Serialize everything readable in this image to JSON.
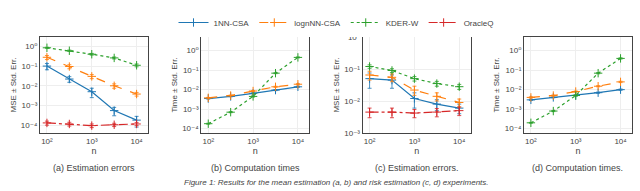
{
  "chart_data": [
    {
      "type": "line",
      "subtitle": "(a) Estimation errors",
      "xlabel": "n",
      "ylabel": "MSE ± Std. Err.",
      "x": [
        100,
        316,
        1000,
        3162,
        10000
      ],
      "series": [
        {
          "name": "1NN-CSA",
          "color": "#1f77b4",
          "line_style": "solid",
          "marker": "plus",
          "values": [
            0.1,
            0.022,
            0.005,
            0.00055,
            0.00018
          ],
          "errors": [
            0.035,
            0.007,
            0.0025,
            0.00025,
            0.0001
          ]
        },
        {
          "name": "lognNN-CSA",
          "color": "#ff7f0e",
          "line_style": "dashed",
          "marker": "plus",
          "values": [
            0.28,
            0.095,
            0.03,
            0.01,
            0.0038
          ],
          "errors": [
            0.065,
            0.022,
            0.007,
            0.0025,
            0.0008
          ]
        },
        {
          "name": "KDER-W",
          "color": "#2ca02c",
          "line_style": "dotted",
          "marker": "plus",
          "values": [
            0.85,
            0.6,
            0.4,
            0.26,
            0.11
          ],
          "errors": [
            0.05,
            0.05,
            0.04,
            0.03,
            0.018
          ]
        },
        {
          "name": "OracleQ",
          "color": "#d62728",
          "line_style": "dashdot",
          "marker": "plus",
          "values": [
            0.00013,
            0.000115,
            9.5e-05,
            0.000105,
            0.000115
          ],
          "errors": [
            3e-05,
            2.5e-05,
            2e-05,
            2e-05,
            2e-05
          ]
        }
      ],
      "log": true,
      "xlim": [
        70,
        18000
      ],
      "ylim": [
        4e-05,
        3
      ],
      "xticks": [
        {
          "value": 100,
          "label": "10²"
        },
        {
          "value": 1000,
          "label": "10³"
        },
        {
          "value": 10000,
          "label": "10⁴"
        }
      ],
      "yticks": [
        {
          "value": 0.0001,
          "label": "10⁻⁴"
        },
        {
          "value": 0.001,
          "label": "10⁻³"
        },
        {
          "value": 0.01,
          "label": "10⁻²"
        },
        {
          "value": 0.1,
          "label": "10⁻¹"
        },
        {
          "value": 1,
          "label": "10⁰"
        }
      ],
      "grid": true
    },
    {
      "type": "line",
      "subtitle": "(b) Computation times",
      "xlabel": "n",
      "ylabel": "Time ± Std. Err.",
      "x": [
        100,
        316,
        1000,
        3162,
        10000
      ],
      "series": [
        {
          "name": "1NN-CSA",
          "color": "#1f77b4",
          "line_style": "solid",
          "marker": "plus",
          "values": [
            0.0035,
            0.0045,
            0.0065,
            0.0095,
            0.014
          ],
          "errors": [
            0.0002,
            0.0002,
            0.0004,
            0.0006,
            0.0009
          ]
        },
        {
          "name": "lognNN-CSA",
          "color": "#ff7f0e",
          "line_style": "dashed",
          "marker": "plus",
          "values": [
            0.0038,
            0.005,
            0.0085,
            0.014,
            0.019
          ],
          "errors": [
            0.0002,
            0.0003,
            0.0004,
            0.0009,
            0.0013
          ]
        },
        {
          "name": "KDER-W",
          "color": "#2ca02c",
          "line_style": "dotted",
          "marker": "plus",
          "values": [
            0.00018,
            0.0007,
            0.0045,
            0.07,
            0.45
          ],
          "errors": [
            1e-05,
            4e-05,
            0.0003,
            0.004,
            0.025
          ]
        }
      ],
      "log": true,
      "xlim": [
        70,
        18000
      ],
      "ylim": [
        6e-05,
        5
      ],
      "xticks": [
        {
          "value": 100,
          "label": "10²"
        },
        {
          "value": 1000,
          "label": "10³"
        },
        {
          "value": 10000,
          "label": "10⁴"
        }
      ],
      "yticks": [
        {
          "value": 0.0001,
          "label": "10⁻⁴"
        },
        {
          "value": 0.001,
          "label": "10⁻³"
        },
        {
          "value": 0.01,
          "label": "10⁻²"
        },
        {
          "value": 0.1,
          "label": "10⁻¹"
        },
        {
          "value": 1,
          "label": "10⁰"
        }
      ],
      "grid": true
    },
    {
      "type": "line",
      "subtitle": "(c) Estimation errors.",
      "xlabel": "n",
      "ylabel": "MSE ± Std. Err.",
      "x": [
        100,
        316,
        1000,
        3162,
        10000
      ],
      "series": [
        {
          "name": "1NN-CSA",
          "color": "#1f77b4",
          "line_style": "solid",
          "marker": "plus",
          "values": [
            0.05,
            0.045,
            0.012,
            0.008,
            0.006
          ],
          "errors": [
            0.025,
            0.02,
            0.006,
            0.003,
            0.002
          ]
        },
        {
          "name": "lognNN-CSA",
          "color": "#ff7f0e",
          "line_style": "dashed",
          "marker": "plus",
          "values": [
            0.065,
            0.055,
            0.022,
            0.014,
            0.009
          ],
          "errors": [
            0.02,
            0.015,
            0.007,
            0.004,
            0.0025
          ]
        },
        {
          "name": "KDER-W",
          "color": "#2ca02c",
          "line_style": "dotted",
          "marker": "plus",
          "values": [
            0.12,
            0.09,
            0.05,
            0.035,
            0.028
          ],
          "errors": [
            0.015,
            0.012,
            0.008,
            0.006,
            0.005
          ]
        },
        {
          "name": "OracleQ",
          "color": "#d62728",
          "line_style": "dashdot",
          "marker": "plus",
          "values": [
            0.0045,
            0.0045,
            0.0042,
            0.0045,
            0.005
          ],
          "errors": [
            0.0015,
            0.0015,
            0.0012,
            0.0013,
            0.0015
          ]
        }
      ],
      "log": true,
      "xlim": [
        70,
        18000
      ],
      "ylim": [
        0.001,
        1
      ],
      "xticks": [
        {
          "value": 100,
          "label": "10²"
        },
        {
          "value": 1000,
          "label": "10³"
        },
        {
          "value": 10000,
          "label": "10⁴"
        }
      ],
      "yticks": [
        {
          "value": 0.001,
          "label": "10⁻³"
        },
        {
          "value": 0.01,
          "label": "10⁻²"
        },
        {
          "value": 0.1,
          "label": "10⁻¹"
        },
        {
          "value": 1,
          "label": "10⁰"
        }
      ],
      "grid": true
    },
    {
      "type": "line",
      "subtitle": "(d) Computation times.",
      "xlabel": "n",
      "ylabel": "Time ± Std. Err.",
      "x": [
        100,
        316,
        1000,
        3162,
        10000
      ],
      "series": [
        {
          "name": "1NN-CSA",
          "color": "#1f77b4",
          "line_style": "solid",
          "marker": "plus",
          "values": [
            0.003,
            0.004,
            0.005,
            0.007,
            0.01
          ],
          "errors": [
            0.0002,
            0.0002,
            0.0003,
            0.0005,
            0.0008
          ]
        },
        {
          "name": "lognNN-CSA",
          "color": "#ff7f0e",
          "line_style": "dashed",
          "marker": "plus",
          "values": [
            0.004,
            0.005,
            0.008,
            0.015,
            0.025
          ],
          "errors": [
            0.0003,
            0.0003,
            0.0005,
            0.001,
            0.002
          ]
        },
        {
          "name": "KDER-W",
          "color": "#2ca02c",
          "line_style": "dotted",
          "marker": "plus",
          "values": [
            0.0002,
            0.0008,
            0.005,
            0.07,
            0.4
          ],
          "errors": [
            1e-05,
            5e-05,
            0.0003,
            0.005,
            0.03
          ]
        }
      ],
      "log": true,
      "xlim": [
        70,
        18000
      ],
      "ylim": [
        6e-05,
        5
      ],
      "xticks": [
        {
          "value": 100,
          "label": "10²"
        },
        {
          "value": 1000,
          "label": "10³"
        },
        {
          "value": 10000,
          "label": "10⁴"
        }
      ],
      "yticks": [
        {
          "value": 0.0001,
          "label": "10⁻⁴"
        },
        {
          "value": 0.001,
          "label": "10⁻³"
        },
        {
          "value": 0.01,
          "label": "10⁻²"
        },
        {
          "value": 0.1,
          "label": "10⁻¹"
        },
        {
          "value": 1,
          "label": "10⁰"
        }
      ],
      "grid": true
    }
  ],
  "annotations": [
    "Figure 1: Results for the mean estimation (a, b) and risk estimation (c, d) experiments."
  ]
}
